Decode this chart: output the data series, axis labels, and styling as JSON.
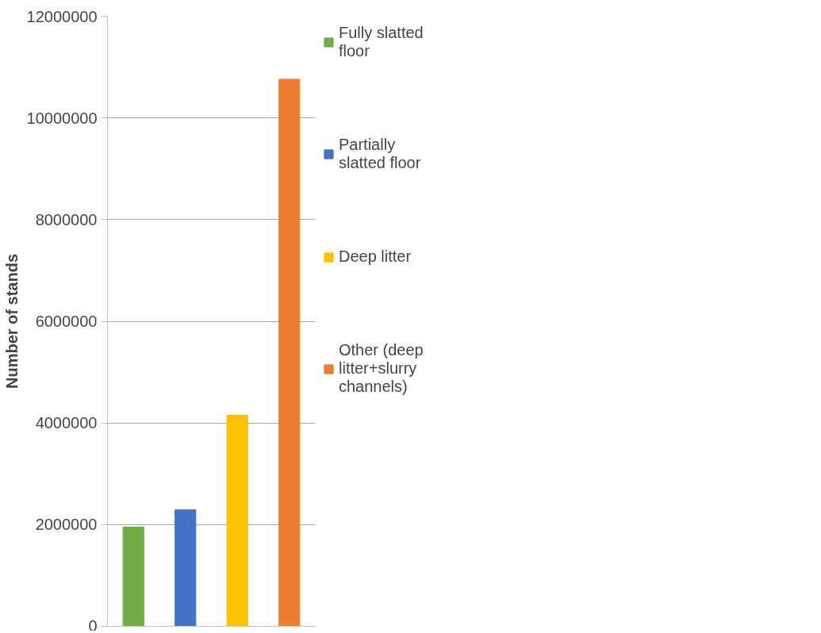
{
  "chart_data": {
    "type": "bar",
    "ylabel": "Number of stands",
    "categories": [
      null,
      null,
      null,
      null
    ],
    "series": [
      {
        "name": "Fully slatted floor",
        "color": "#70ad47",
        "values": [
          1950000,
          null,
          null,
          null
        ]
      },
      {
        "name": "Partially  slatted floor",
        "color": "#4472c4",
        "values": [
          null,
          2290000,
          null,
          null
        ]
      },
      {
        "name": "Deep litter",
        "color": "#ffc000",
        "values": [
          null,
          null,
          4150000,
          null
        ]
      },
      {
        "name": "Other (deep litter+slurry channels)",
        "color": "#ed7d31",
        "values": [
          null,
          null,
          null,
          10760000
        ]
      }
    ],
    "ylim": [
      0,
      12000000
    ],
    "yticks": [
      0,
      2000000,
      4000000,
      6000000,
      8000000,
      10000000,
      12000000
    ],
    "grid": "y",
    "legend": "right",
    "tick_labels": "y"
  }
}
